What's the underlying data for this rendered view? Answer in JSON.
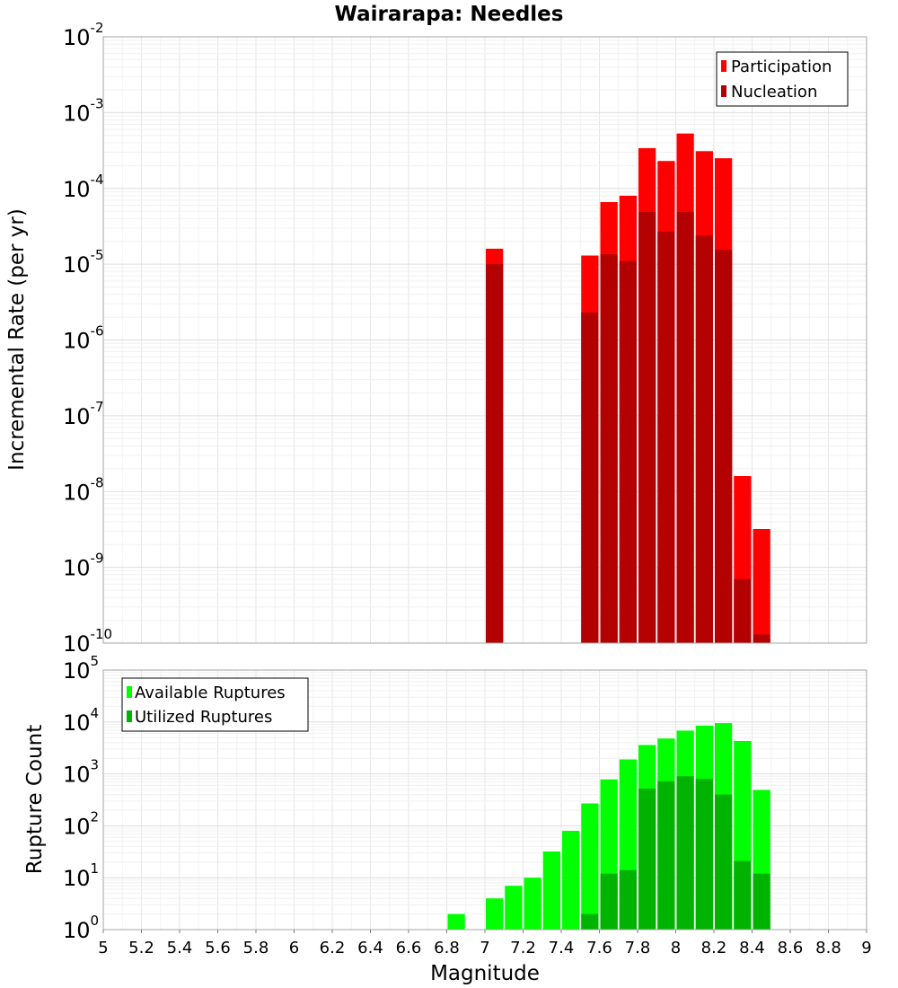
{
  "chart_data": [
    {
      "type": "bar",
      "title": "Wairarapa: Needles",
      "ylabel": "Incremental Rate (per yr)",
      "yscale": "log",
      "ylim_exponents": [
        -10,
        -2
      ],
      "ytick_base": "10",
      "ytick_exponents": [
        "-10",
        "-9",
        "-8",
        "-7",
        "-6",
        "-5",
        "-4",
        "-3",
        "-2"
      ],
      "xlim": [
        5,
        9
      ],
      "bin_width": 0.1,
      "grid": true,
      "legend_position": "top-right",
      "series": [
        {
          "name": "Participation",
          "color": "#ff0000",
          "x": [
            7.05,
            7.55,
            7.65,
            7.75,
            7.85,
            7.95,
            8.05,
            8.15,
            8.25,
            8.35,
            8.45
          ],
          "values": [
            1.6e-05,
            1.3e-05,
            6.6e-05,
            8e-05,
            0.00034,
            0.00023,
            0.00053,
            0.00031,
            0.00025,
            1.6e-08,
            3.2e-09
          ]
        },
        {
          "name": "Nucleation",
          "color": "#b30000",
          "x": [
            7.05,
            7.55,
            7.65,
            7.75,
            7.85,
            7.95,
            8.05,
            8.15,
            8.25,
            8.35,
            8.45
          ],
          "values": [
            1e-05,
            2.3e-06,
            1.35e-05,
            1.1e-05,
            4.9e-05,
            2.7e-05,
            4.9e-05,
            2.4e-05,
            1.55e-05,
            7e-10,
            1.3e-10
          ]
        }
      ]
    },
    {
      "type": "bar",
      "xlabel": "Magnitude",
      "ylabel": "Rupture Count",
      "yscale": "log",
      "ylim_exponents": [
        0,
        5
      ],
      "ytick_base": "10",
      "ytick_exponents": [
        "0",
        "1",
        "2",
        "3",
        "4",
        "5"
      ],
      "xlim": [
        5,
        9
      ],
      "xticks": [
        "5",
        "5.2",
        "5.4",
        "5.6",
        "5.8",
        "6",
        "6.2",
        "6.4",
        "6.6",
        "6.8",
        "7",
        "7.2",
        "7.4",
        "7.6",
        "7.8",
        "8",
        "8.2",
        "8.4",
        "8.6",
        "8.8",
        "9"
      ],
      "bin_width": 0.1,
      "grid": true,
      "legend_position": "top-left",
      "series": [
        {
          "name": "Available Ruptures",
          "color": "#00ff00",
          "x": [
            6.85,
            6.95,
            7.05,
            7.15,
            7.25,
            7.35,
            7.45,
            7.55,
            7.65,
            7.75,
            7.85,
            7.95,
            8.05,
            8.15,
            8.25,
            8.35,
            8.45,
            8.55
          ],
          "values": [
            2,
            1,
            4,
            7,
            10,
            32,
            80,
            270,
            780,
            1900,
            3600,
            4800,
            6800,
            8500,
            9500,
            4300,
            490,
            1
          ]
        },
        {
          "name": "Utilized Ruptures",
          "color": "#00b300",
          "x": [
            7.05,
            7.55,
            7.65,
            7.75,
            7.85,
            7.95,
            8.05,
            8.15,
            8.25,
            8.35,
            8.45
          ],
          "values": [
            1,
            2,
            12,
            14,
            520,
            720,
            900,
            800,
            400,
            21,
            12
          ]
        }
      ]
    }
  ]
}
